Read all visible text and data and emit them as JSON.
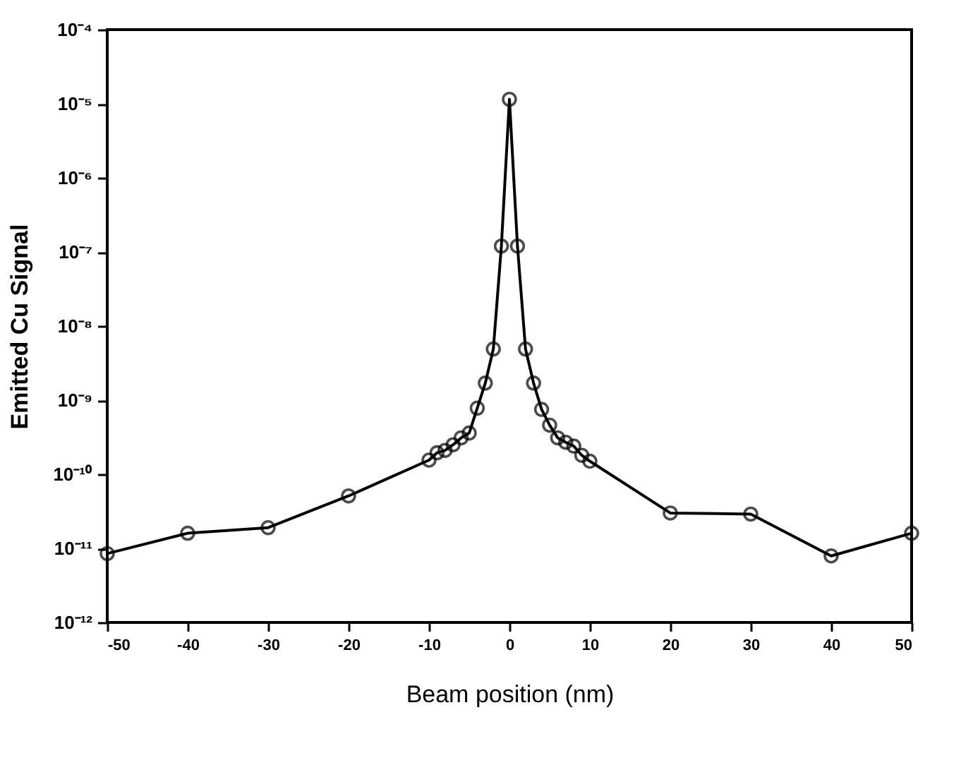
{
  "chart_data": {
    "type": "line",
    "xlabel": "Beam position (nm)",
    "ylabel": "Emitted Cu Signal",
    "x": [
      -50,
      -40,
      -30,
      -20,
      -10,
      -9,
      -8,
      -7,
      -6,
      -5,
      -4,
      -3,
      -2,
      -1,
      0,
      1,
      2,
      3,
      4,
      5,
      6,
      7,
      8,
      9,
      10,
      20,
      30,
      40,
      50
    ],
    "series": [
      {
        "color": "#000000",
        "values": [
          8.5e-12,
          1.6e-11,
          1.9e-11,
          5.1e-11,
          1.55e-10,
          1.95e-10,
          2.1e-10,
          2.5e-10,
          3.1e-10,
          3.6e-10,
          7.8e-10,
          1.7e-09,
          4.9e-09,
          1.2e-07,
          1.15e-05,
          1.2e-07,
          4.9e-09,
          1.7e-09,
          7.5e-10,
          4.6e-10,
          3.1e-10,
          2.7e-10,
          2.4e-10,
          1.8e-10,
          1.5e-10,
          3e-11,
          2.9e-11,
          7.9e-12,
          1.6e-11
        ]
      }
    ],
    "xlim": [
      -50,
      50
    ],
    "xticks": [
      -50,
      -40,
      -30,
      -20,
      -10,
      0,
      10,
      20,
      30,
      40,
      50
    ],
    "log": "y",
    "ylim": [
      1e-12,
      0.0001
    ],
    "yticks": [
      {
        "value": 1e-12,
        "label": "10⁻¹²"
      },
      {
        "value": 1e-11,
        "label": "10⁻¹¹"
      },
      {
        "value": 1e-10,
        "label": "10⁻¹⁰"
      },
      {
        "value": 1e-09,
        "label": "10⁻⁹"
      },
      {
        "value": 1e-08,
        "label": "10⁻⁸"
      },
      {
        "value": 1e-07,
        "label": "10⁻⁷"
      },
      {
        "value": 1e-06,
        "label": "10⁻⁶"
      },
      {
        "value": 1e-05,
        "label": "10⁻⁵"
      },
      {
        "value": 0.0001,
        "label": "10⁻⁴"
      }
    ],
    "marker": "circle",
    "line_style": "solid",
    "grid": false,
    "legend": false
  }
}
